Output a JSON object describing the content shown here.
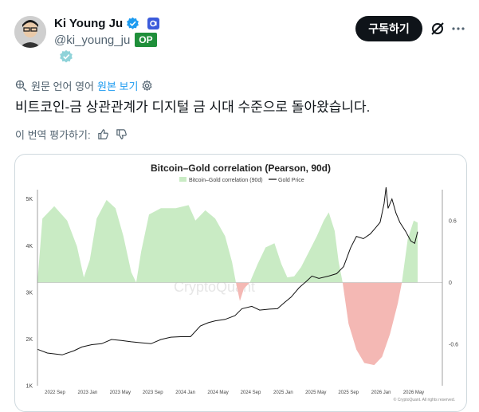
{
  "author": {
    "display_name": "Ki Young Ju",
    "handle": "@ki_young_ju",
    "op_badge": "OP",
    "verified_icon": "verified-check-icon",
    "org_icon": "org-badge-icon"
  },
  "actions": {
    "subscribe_label": "구독하기",
    "grok_icon": "grok-icon",
    "more_icon": "more-icon"
  },
  "translation": {
    "source_label": "원문 언어 영어",
    "show_original_label": "원본 보기",
    "settings_icon": "gear-icon"
  },
  "tweet": {
    "text": "비트코인-금 상관관계가 디지털 금 시대 수준으로 돌아왔습니다."
  },
  "rating": {
    "label": "이 번역 평가하기:",
    "like_icon": "thumbs-up-icon",
    "dislike_icon": "thumbs-down-icon"
  },
  "colors": {
    "corr_fill": "#c9ebc4",
    "corr_neg_fill": "#f4b8b4",
    "price_line": "#111111",
    "subscribe_bg": "#0f1419",
    "op_green": "#1f8f3a",
    "link_blue": "#1d9bf0"
  },
  "chart_data": {
    "type": "area",
    "title": "Bitcoin–Gold correlation (Pearson, 90d)",
    "legend": [
      "Bitcoin–Gold correlation (90d)",
      "Gold Price"
    ],
    "legend_placement": "top-center",
    "watermark": "CryptoQuant",
    "footer_note": "© CryptoQuant. All rights reserved.",
    "x_ticks": [
      "2022 Sep",
      "2023 Jan",
      "2023 May",
      "2023 Sep",
      "2024 Jan",
      "2024 May",
      "2024 Sep",
      "2025 Jan",
      "2025 May",
      "2025 Sep",
      "2026 Jan",
      "2026 May"
    ],
    "left_axis": {
      "ticks": [
        "1K",
        "2K",
        "3K",
        "4K",
        "5K"
      ],
      "range": [
        1000,
        5200
      ]
    },
    "right_axis": {
      "ticks": [
        "-0.6",
        "0",
        "0.6"
      ],
      "range": [
        -1.0,
        0.9
      ]
    },
    "x_range": [
      2022.55,
      2026.65
    ],
    "series": [
      {
        "name": "Bitcoin–Gold correlation (90d)",
        "axis": "right",
        "points": [
          [
            2022.55,
            0.0
          ],
          [
            2022.6,
            0.62
          ],
          [
            2022.72,
            0.74
          ],
          [
            2022.85,
            0.6
          ],
          [
            2022.95,
            0.35
          ],
          [
            2023.02,
            0.05
          ],
          [
            2023.08,
            0.22
          ],
          [
            2023.15,
            0.62
          ],
          [
            2023.25,
            0.8
          ],
          [
            2023.34,
            0.72
          ],
          [
            2023.42,
            0.45
          ],
          [
            2023.5,
            0.1
          ],
          [
            2023.55,
            0.0
          ],
          [
            2023.6,
            0.3
          ],
          [
            2023.68,
            0.66
          ],
          [
            2023.8,
            0.72
          ],
          [
            2023.95,
            0.72
          ],
          [
            2024.08,
            0.75
          ],
          [
            2024.15,
            0.6
          ],
          [
            2024.25,
            0.7
          ],
          [
            2024.35,
            0.62
          ],
          [
            2024.45,
            0.45
          ],
          [
            2024.52,
            0.2
          ],
          [
            2024.56,
            0.0
          ],
          [
            2024.6,
            -0.18
          ],
          [
            2024.64,
            -0.06
          ],
          [
            2024.7,
            0.0
          ],
          [
            2024.78,
            0.18
          ],
          [
            2024.86,
            0.34
          ],
          [
            2024.95,
            0.38
          ],
          [
            2025.02,
            0.18
          ],
          [
            2025.08,
            0.05
          ],
          [
            2025.15,
            0.06
          ],
          [
            2025.22,
            0.15
          ],
          [
            2025.3,
            0.3
          ],
          [
            2025.38,
            0.45
          ],
          [
            2025.45,
            0.6
          ],
          [
            2025.5,
            0.68
          ],
          [
            2025.56,
            0.5
          ],
          [
            2025.6,
            0.2
          ],
          [
            2025.64,
            0.0
          ],
          [
            2025.7,
            -0.4
          ],
          [
            2025.78,
            -0.65
          ],
          [
            2025.86,
            -0.78
          ],
          [
            2025.96,
            -0.8
          ],
          [
            2026.04,
            -0.72
          ],
          [
            2026.12,
            -0.5
          ],
          [
            2026.2,
            -0.2
          ],
          [
            2026.24,
            0.0
          ],
          [
            2026.3,
            0.42
          ],
          [
            2026.36,
            0.6
          ],
          [
            2026.4,
            0.58
          ]
        ]
      },
      {
        "name": "Gold Price",
        "axis": "left",
        "points": [
          [
            2022.55,
            1780
          ],
          [
            2022.65,
            1700
          ],
          [
            2022.8,
            1660
          ],
          [
            2022.92,
            1750
          ],
          [
            2023.0,
            1830
          ],
          [
            2023.1,
            1880
          ],
          [
            2023.2,
            1900
          ],
          [
            2023.3,
            1990
          ],
          [
            2023.4,
            1970
          ],
          [
            2023.5,
            1940
          ],
          [
            2023.6,
            1920
          ],
          [
            2023.7,
            1900
          ],
          [
            2023.8,
            1990
          ],
          [
            2023.9,
            2040
          ],
          [
            2024.0,
            2050
          ],
          [
            2024.1,
            2050
          ],
          [
            2024.2,
            2280
          ],
          [
            2024.28,
            2350
          ],
          [
            2024.35,
            2390
          ],
          [
            2024.45,
            2420
          ],
          [
            2024.55,
            2500
          ],
          [
            2024.62,
            2650
          ],
          [
            2024.72,
            2700
          ],
          [
            2024.8,
            2620
          ],
          [
            2024.9,
            2640
          ],
          [
            2024.98,
            2650
          ],
          [
            2025.05,
            2780
          ],
          [
            2025.12,
            2900
          ],
          [
            2025.2,
            3100
          ],
          [
            2025.28,
            3250
          ],
          [
            2025.33,
            3350
          ],
          [
            2025.4,
            3300
          ],
          [
            2025.5,
            3350
          ],
          [
            2025.58,
            3400
          ],
          [
            2025.65,
            3550
          ],
          [
            2025.72,
            3950
          ],
          [
            2025.78,
            4200
          ],
          [
            2025.85,
            4150
          ],
          [
            2025.92,
            4250
          ],
          [
            2025.98,
            4400
          ],
          [
            2026.02,
            4500
          ],
          [
            2026.06,
            4900
          ],
          [
            2026.08,
            5250
          ],
          [
            2026.1,
            4800
          ],
          [
            2026.14,
            5000
          ],
          [
            2026.18,
            4700
          ],
          [
            2026.22,
            4500
          ],
          [
            2026.28,
            4300
          ],
          [
            2026.33,
            4100
          ],
          [
            2026.37,
            4050
          ],
          [
            2026.4,
            4300
          ]
        ]
      }
    ]
  }
}
